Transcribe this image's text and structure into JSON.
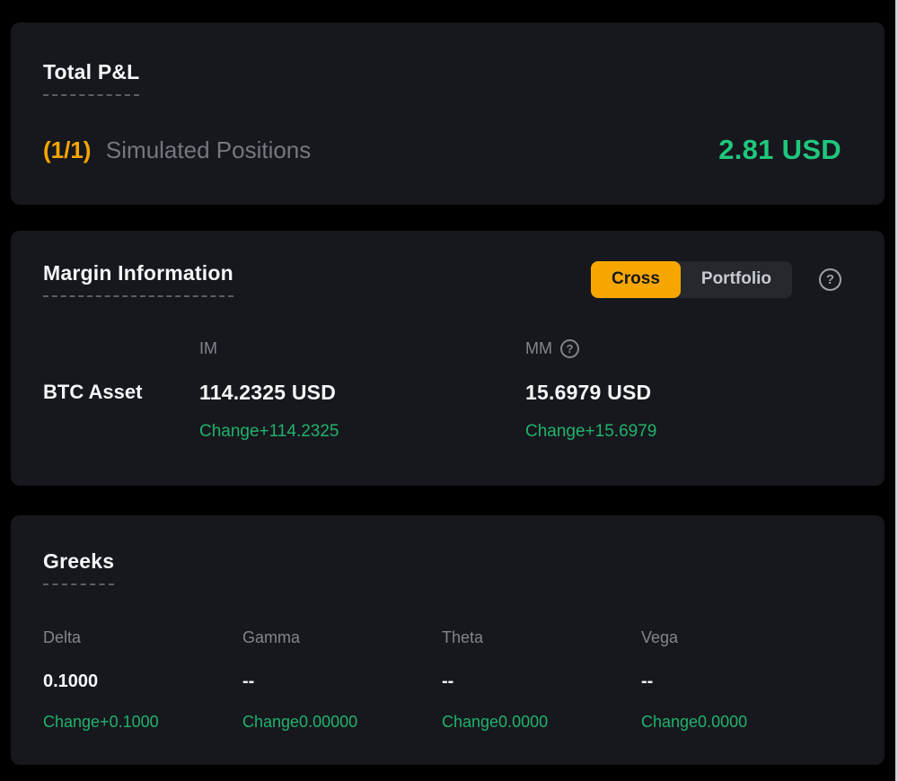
{
  "colors": {
    "background": "#000000",
    "panel_background": "#17181d",
    "accent_orange": "#f7a600",
    "positive_green": "#20b26c",
    "pnl_value_green": "#1fc77d",
    "text_primary": "#f4f6f8",
    "text_secondary": "#81858c"
  },
  "icons": {
    "help_glyph": "?"
  },
  "pnl_panel": {
    "title": "Total P&L",
    "count": "(1/1)",
    "label": "Simulated Positions",
    "value": "2.81 USD"
  },
  "margin_panel": {
    "title": "Margin Information",
    "toggle": {
      "options": [
        "Cross",
        "Portfolio"
      ],
      "selected": "Cross"
    },
    "columns": [
      "IM",
      "MM"
    ],
    "row": {
      "asset": "BTC Asset",
      "im_value": "114.2325 USD",
      "im_change": "Change+114.2325",
      "mm_value": "15.6979 USD",
      "mm_change": "Change+15.6979"
    }
  },
  "greeks_panel": {
    "title": "Greeks",
    "items": [
      {
        "label": "Delta",
        "value": "0.1000",
        "change": "Change+0.1000"
      },
      {
        "label": "Gamma",
        "value": "--",
        "change": "Change0.00000"
      },
      {
        "label": "Theta",
        "value": "--",
        "change": "Change0.0000"
      },
      {
        "label": "Vega",
        "value": "--",
        "change": "Change0.0000"
      }
    ]
  }
}
